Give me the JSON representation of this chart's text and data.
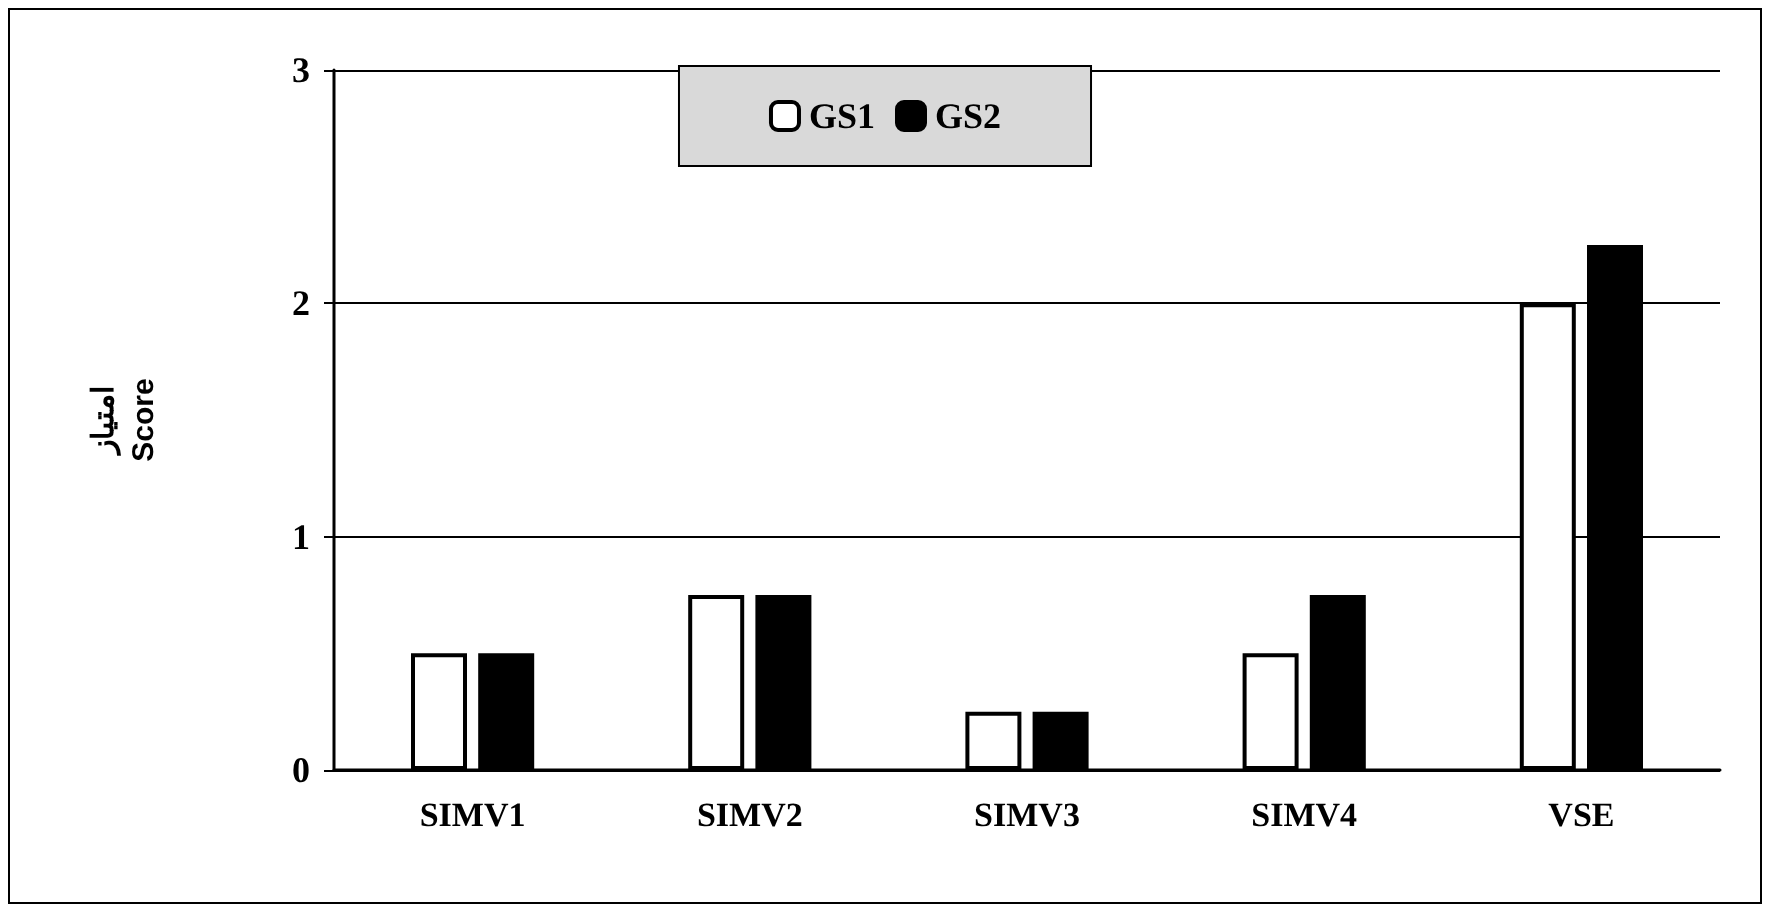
{
  "chart_data": {
    "type": "bar",
    "ylabel": "امتیاز\nScore",
    "categories": [
      "SIMV1",
      "SIMV2",
      "SIMV3",
      "SIMV4",
      "VSE"
    ],
    "series": [
      {
        "name": "GS1",
        "color": "#ffffff",
        "values": [
          0.5,
          0.75,
          0.25,
          0.5,
          2
        ]
      },
      {
        "name": "GS2",
        "color": "#000000",
        "values": [
          0.5,
          0.75,
          0.25,
          0.75,
          2.25
        ]
      }
    ],
    "ylim": [
      0,
      3
    ],
    "yticks": [
      0,
      1,
      2,
      3
    ],
    "grid": "y",
    "legend": "top"
  }
}
